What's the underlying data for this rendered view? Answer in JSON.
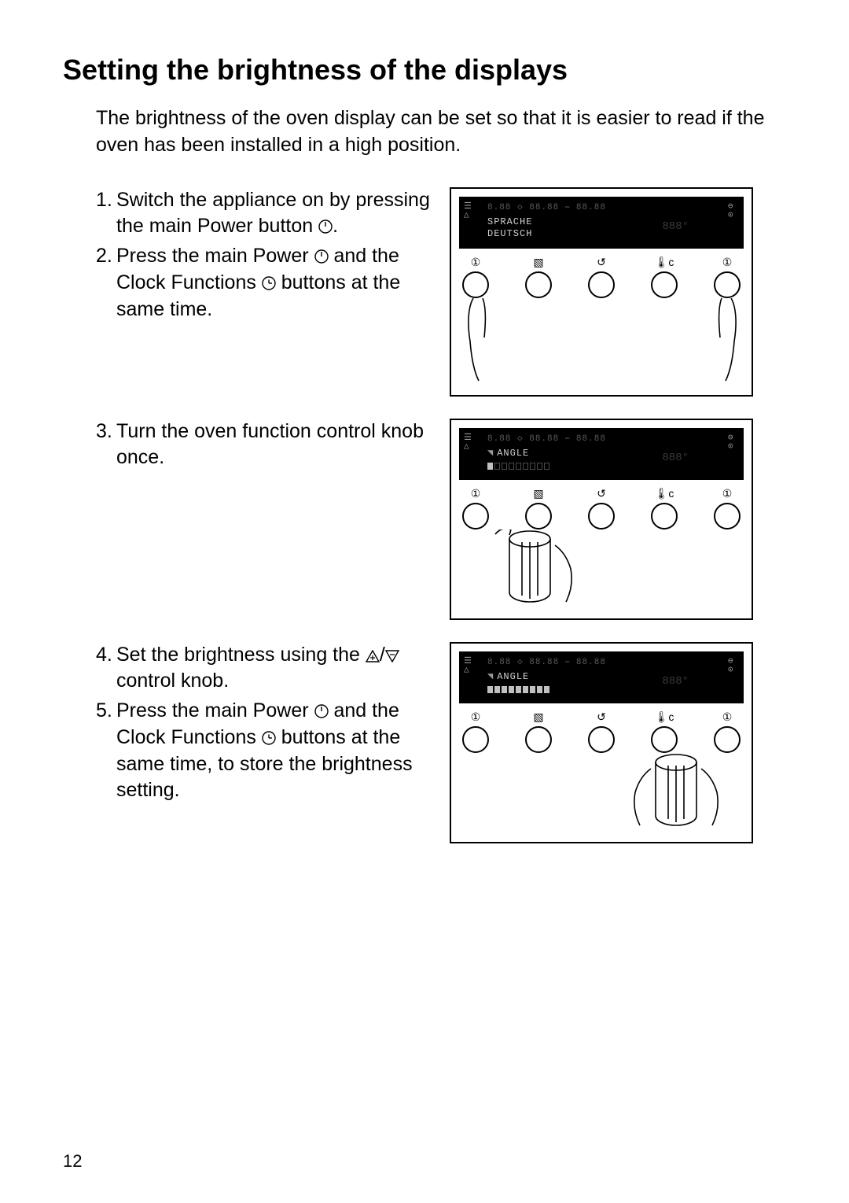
{
  "title": "Setting the brightness of the displays",
  "intro": "The brightness of the oven display can be set so that it is easier to read if the oven has been installed in a high position.",
  "steps": {
    "s1": {
      "num": "1.",
      "text_before": "Switch the appliance on by pressing the main Power button ",
      "text_after": "."
    },
    "s2": {
      "num": "2.",
      "text_a": "Press the main Power ",
      "text_b": " and the Clock Functions ",
      "text_c": " buttons at the same time."
    },
    "s3": {
      "num": "3.",
      "text": "Turn the oven function control knob once."
    },
    "s4": {
      "num": "4.",
      "text_a": "Set the brightness using the ",
      "text_b": " con­trol knob."
    },
    "s5": {
      "num": "5.",
      "text_a": "Press the main Power ",
      "text_b": " and the Clock Functions ",
      "text_c": " buttons at the same time, to store the brightness setting."
    }
  },
  "display": {
    "seg_placeholder": "8.88 ◇ 88.88 ⎯ 88.88",
    "panel1_line1": "SPRACHE",
    "panel1_line2": "DEUTSCH",
    "panel2_text": "ANGLE",
    "panel3_text": "ANGLE",
    "ghost_temp": "888°"
  },
  "buttons": {
    "power_label": "①",
    "cook_label": "▧",
    "timer_label": "↺",
    "temp_label": "🌡c",
    "clock_label": "①"
  },
  "bars": {
    "panel2_on": 1,
    "panel3_on": 9,
    "total": 9
  },
  "page_number": "12",
  "colors": {
    "text": "#000000",
    "bg": "#ffffff",
    "panel_bg": "#000000",
    "panel_dim": "#5a5a5a",
    "panel_bright": "#d0d0d0"
  }
}
